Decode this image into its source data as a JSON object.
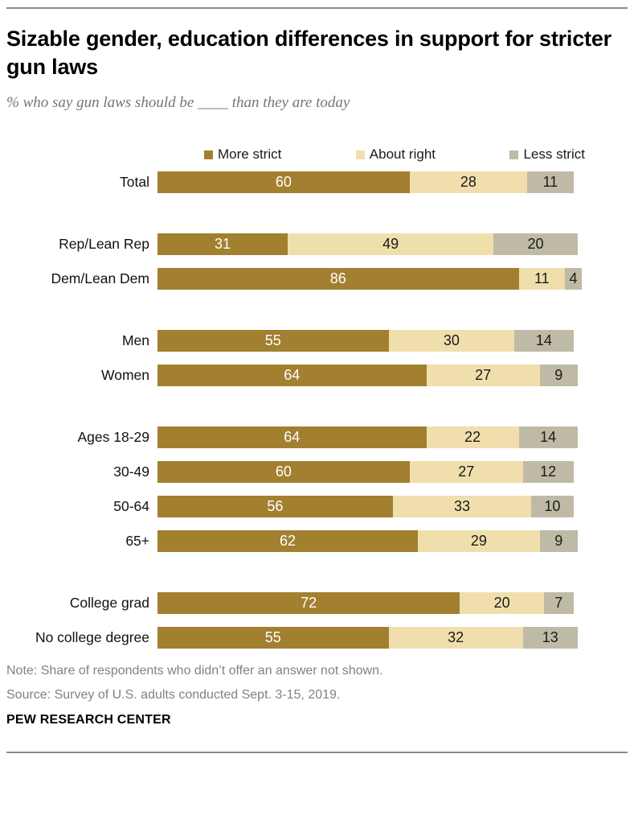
{
  "header": {
    "title": "Sizable gender, education differences in support for stricter gun laws",
    "subtitle": "% who say gun laws should be ____ than they are today"
  },
  "legend": {
    "items": [
      {
        "label": "More strict",
        "color": "#A28030"
      },
      {
        "label": "About right",
        "color": "#F0DFAD"
      },
      {
        "label": "Less strict",
        "color": "#BFBAA6"
      }
    ]
  },
  "chart_data": {
    "type": "bar",
    "orientation": "horizontal",
    "stacked": true,
    "value_unit": "percent",
    "axis_max": 101,
    "series": [
      "More strict",
      "About right",
      "Less strict"
    ],
    "series_colors": [
      "#A28030",
      "#F0DFAD",
      "#BFBAA6"
    ],
    "value_label_colors": [
      "#ffffff",
      "#1a1a1a",
      "#1a1a1a"
    ],
    "groups": [
      {
        "rows": [
          {
            "label": "Total",
            "values": [
              60,
              28,
              11
            ]
          }
        ]
      },
      {
        "rows": [
          {
            "label": "Rep/Lean Rep",
            "values": [
              31,
              49,
              20
            ]
          },
          {
            "label": "Dem/Lean Dem",
            "values": [
              86,
              11,
              4
            ]
          }
        ]
      },
      {
        "rows": [
          {
            "label": "Men",
            "values": [
              55,
              30,
              14
            ]
          },
          {
            "label": "Women",
            "values": [
              64,
              27,
              9
            ]
          }
        ]
      },
      {
        "rows": [
          {
            "label": "Ages 18-29",
            "values": [
              64,
              22,
              14
            ]
          },
          {
            "label": "30-49",
            "values": [
              60,
              27,
              12
            ]
          },
          {
            "label": "50-64",
            "values": [
              56,
              33,
              10
            ]
          },
          {
            "label": "65+",
            "values": [
              62,
              29,
              9
            ]
          }
        ]
      },
      {
        "rows": [
          {
            "label": "College grad",
            "values": [
              72,
              20,
              7
            ]
          },
          {
            "label": "No college degree",
            "values": [
              55,
              32,
              13
            ]
          }
        ]
      }
    ]
  },
  "footer": {
    "note": "Note: Share of respondents who didn’t offer an answer not shown.",
    "source": "Source: Survey of U.S. adults conducted Sept. 3-15, 2019.",
    "brand": "PEW RESEARCH CENTER"
  }
}
